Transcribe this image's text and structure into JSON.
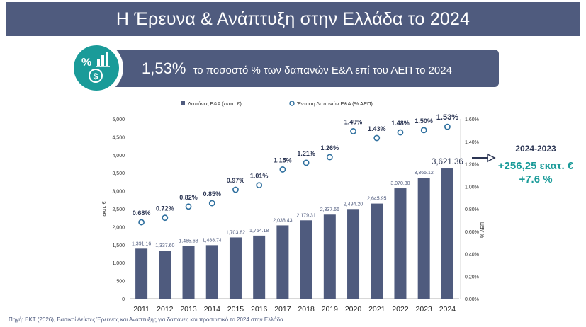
{
  "page_title": "Η Έρευνα & Ανάπτυξη στην Ελλάδα το 2024",
  "highlight": {
    "value": "1,53%",
    "text": "το ποσοστό % των δαπανών Ε&Α επί του ΑΕΠ το 2024",
    "icon": "percent-chart-money-icon"
  },
  "kpi": {
    "period": "2024-2023",
    "change": "+256,25 εκατ. €",
    "pct": "+7.6 %",
    "arrow_icon": "arrow-right-icon"
  },
  "source": "Πηγή: ΕΚΤ (2026), Βασικοί Δείκτες Έρευνας και Ανάπτυξης για δαπάνες και προσωπικό το 2024 στην Ελλάδα",
  "colors": {
    "header": "#4f5b7e",
    "bar": "#4f5b7e",
    "marker": "#2e6f9e",
    "accent": "#1a9b99"
  },
  "chart_data": {
    "type": "bar",
    "categories": [
      "2011",
      "2012",
      "2013",
      "2014",
      "2015",
      "2016",
      "2017",
      "2018",
      "2019",
      "2020",
      "2021",
      "2022",
      "2023",
      "2024"
    ],
    "series": [
      {
        "name": "Δαπάνες Ε&Α (εκατ. €)",
        "type": "bar",
        "axis": "left",
        "values": [
          1391.16,
          1337.6,
          1465.68,
          1488.74,
          1703.82,
          1754.18,
          2038.43,
          2179.31,
          2337.66,
          2494.2,
          2645.95,
          3070.3,
          3365.12,
          3621.36
        ],
        "labels": [
          "1,391.16",
          "1,337.60",
          "1,465.68",
          "1,488.74",
          "1,703.82",
          "1,754.18",
          "2,038.43",
          "2,179.31",
          "2,337.66",
          "2,494.20",
          "2,645.95",
          "3,070.30",
          "3,365.12",
          "3,621.36"
        ]
      },
      {
        "name": "Ένταση Δαπανών Ε&Α  (% ΑΕΠ)",
        "type": "scatter",
        "axis": "right",
        "values": [
          0.68,
          0.72,
          0.82,
          0.85,
          0.97,
          1.01,
          1.15,
          1.21,
          1.26,
          1.49,
          1.43,
          1.48,
          1.5,
          1.53
        ],
        "labels": [
          "0.68%",
          "0.72%",
          "0.82%",
          "0.85%",
          "0.97%",
          "1.01%",
          "1.15%",
          "1.21%",
          "1.26%",
          "1.49%",
          "1.43%",
          "1.48%",
          "1.50%",
          "1.53%"
        ]
      }
    ],
    "ylabel": "εκατ. €",
    "y2label": "% ΑΕΠ",
    "ylim": [
      0,
      5000
    ],
    "y2lim": [
      0,
      1.6
    ],
    "yticks": [
      "0",
      "500",
      "1,000",
      "1,500",
      "2,000",
      "2,500",
      "3,000",
      "3,500",
      "4,000",
      "4,500",
      "5,000"
    ],
    "y2ticks": [
      "0.00%",
      "0.20%",
      "0.40%",
      "0.60%",
      "0.80%",
      "1.00%",
      "1.20%",
      "1.40%",
      "1.60%"
    ],
    "grid": false,
    "legend": "top"
  }
}
